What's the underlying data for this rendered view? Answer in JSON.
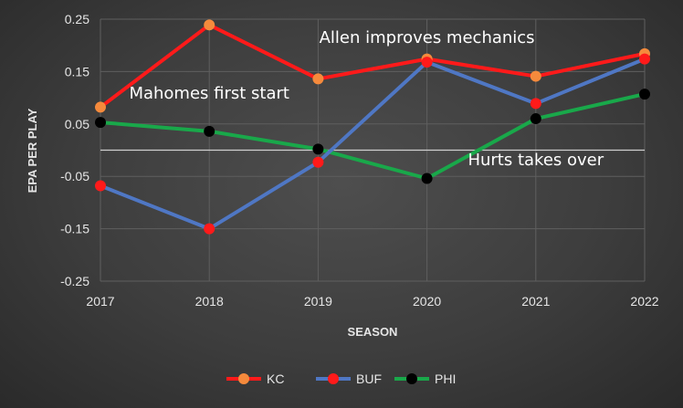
{
  "chart_data": {
    "type": "line",
    "title": "",
    "xlabel": "SEASON",
    "ylabel": "EPA PER PLAY",
    "categories": [
      "2017",
      "2018",
      "2019",
      "2020",
      "2021",
      "2022"
    ],
    "ylim": [
      -0.25,
      0.25
    ],
    "yticks": [
      "0.25",
      "0.15",
      "0.05",
      "-0.05",
      "-0.15",
      "-0.25"
    ],
    "ytick_values": [
      0.25,
      0.15,
      0.05,
      -0.05,
      -0.15,
      -0.25
    ],
    "grid": true,
    "legend_position": "bottom",
    "series": [
      {
        "name": "KC",
        "color": "#ff1a1a",
        "marker_color": "#f58a3c",
        "values": [
          0.082,
          0.239,
          0.136,
          0.174,
          0.141,
          0.184
        ]
      },
      {
        "name": "BUF",
        "color": "#4f77c4",
        "marker_color": "#ff1a1a",
        "values": [
          -0.068,
          -0.15,
          -0.023,
          0.168,
          0.089,
          0.174
        ]
      },
      {
        "name": "PHI",
        "color": "#19a84a",
        "marker_color": "#000000",
        "values": [
          0.053,
          0.036,
          0.002,
          -0.054,
          0.06,
          0.107
        ]
      }
    ],
    "annotations": [
      {
        "text": "Allen improves mechanics",
        "x_category": "2020",
        "y": 0.205
      },
      {
        "text": "Mahomes first start",
        "x_category": "2018",
        "y": 0.098
      },
      {
        "text": "Hurts takes over",
        "x_category": "2021",
        "y": -0.029
      }
    ]
  }
}
